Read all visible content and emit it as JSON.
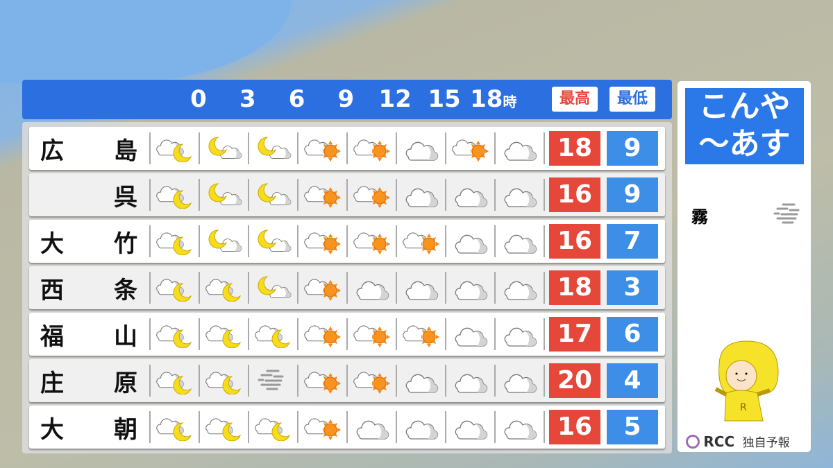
{
  "header": {
    "hours": [
      "0",
      "3",
      "6",
      "9",
      "12",
      "15",
      "18"
    ],
    "hour_suffix": "時",
    "high_label": "最高",
    "low_label": "最低",
    "unit": "℃"
  },
  "colors": {
    "high": "#e5483a",
    "low": "#3d8ee6",
    "header": "#2b6fe0"
  },
  "rows": [
    {
      "name": [
        "広",
        "島"
      ],
      "icons": [
        "cloud-moon",
        "moon-cloud",
        "moon-cloud",
        "cloud-sun",
        "cloud-sun",
        "cloud",
        "cloud-sun",
        "cloud"
      ],
      "high": "18",
      "low": "9"
    },
    {
      "name": [
        "",
        "呉"
      ],
      "icons": [
        "cloud-moon",
        "moon-cloud",
        "moon-cloud",
        "cloud-sun",
        "cloud-sun",
        "cloud",
        "cloud",
        "cloud"
      ],
      "high": "16",
      "low": "9"
    },
    {
      "name": [
        "大",
        "竹"
      ],
      "icons": [
        "cloud-moon",
        "moon-cloud",
        "moon-cloud",
        "cloud-sun",
        "cloud-sun",
        "cloud-sun",
        "cloud",
        "cloud"
      ],
      "high": "16",
      "low": "7"
    },
    {
      "name": [
        "西",
        "条"
      ],
      "icons": [
        "cloud-moon",
        "cloud-moon",
        "moon-cloud",
        "cloud-sun",
        "cloud",
        "cloud",
        "cloud",
        "cloud"
      ],
      "high": "18",
      "low": "3"
    },
    {
      "name": [
        "福",
        "山"
      ],
      "icons": [
        "cloud-moon",
        "cloud-moon",
        "cloud-moon",
        "cloud-sun",
        "cloud-sun",
        "cloud-sun",
        "cloud",
        "cloud"
      ],
      "high": "17",
      "low": "6"
    },
    {
      "name": [
        "庄",
        "原"
      ],
      "icons": [
        "cloud-moon",
        "cloud-moon",
        "fog",
        "cloud-sun",
        "cloud-sun",
        "cloud",
        "cloud",
        "cloud"
      ],
      "high": "20",
      "low": "4"
    },
    {
      "name": [
        "大",
        "朝"
      ],
      "icons": [
        "cloud-moon",
        "cloud-moon",
        "cloud-moon",
        "cloud-sun",
        "cloud",
        "cloud",
        "cloud",
        "cloud"
      ],
      "high": "16",
      "low": "5"
    }
  ],
  "side": {
    "title_line1": "こんや",
    "title_line2": "〜あす",
    "legend_label": "霧",
    "legend_icon": "fog",
    "brand": "RCC",
    "brand_note": "独自予報"
  }
}
